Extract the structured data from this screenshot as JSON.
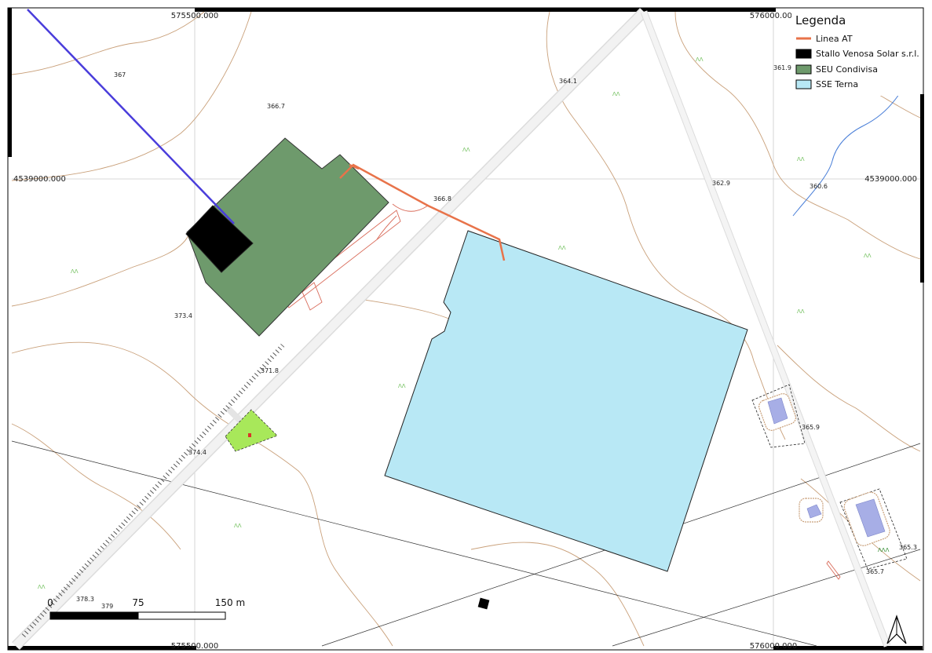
{
  "legend": {
    "title": "Legenda",
    "items": [
      {
        "label": "Linea AT",
        "color": "#e8734a",
        "kind": "line"
      },
      {
        "label": "Stallo Venosa Solar s.r.l.",
        "color": "#000000",
        "kind": "fill"
      },
      {
        "label": "SEU Condivisa",
        "color": "#6e9a6c",
        "kind": "fill"
      },
      {
        "label": "SSE Terna",
        "color": "#b8e8f5",
        "kind": "fill"
      }
    ]
  },
  "grid": {
    "x_top_left": "575500.000",
    "x_top_right": "576000.000",
    "x_bottom_left": "575500.000",
    "x_bottom_right": "576000.000",
    "y_left": "4539000.000",
    "y_right": "4539000.000"
  },
  "elevations": [
    "367",
    "366.7",
    "364.1",
    "361.9",
    "362.9",
    "360.6",
    "366.8",
    "373.4",
    "371.8",
    "374.4",
    "365.9",
    "365.3",
    "365.7",
    "378.3",
    "379"
  ],
  "scalebar": {
    "labels": [
      "0",
      "75",
      "150 m"
    ]
  },
  "north_arrow": "north-arrow",
  "colors": {
    "linea_at": "#e8734a",
    "stallo": "#000000",
    "seu": "#6e9a6c",
    "sse": "#b8e8f5",
    "blue_line": "#4a3ddb",
    "contour": "#c9a07a",
    "road": "#eeeeee",
    "parcel_green": "#a8e85a"
  }
}
